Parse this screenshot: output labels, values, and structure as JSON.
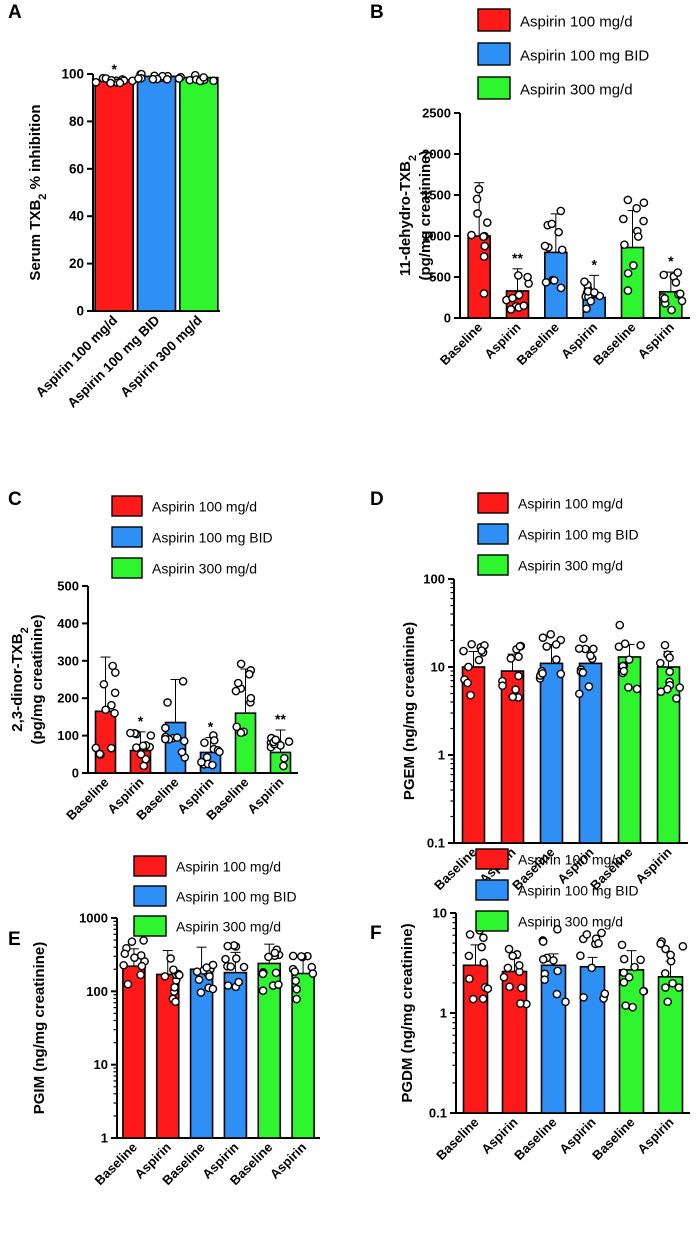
{
  "figure": {
    "colors": {
      "red": "#ff1a1a",
      "blue": "#2e8ff5",
      "green": "#2ef52e"
    },
    "legend_labels": [
      "Aspirin 100 mg/d",
      "Aspirin 100 mg BID",
      "Aspirin 300 mg/d"
    ]
  },
  "chart_data": [
    {
      "panel": "A",
      "type": "bar",
      "ylabel_main": "Serum TXB",
      "ylabel_sub": "2",
      "ylabel_tail": " % inhibition",
      "ylim": [
        0,
        100
      ],
      "yticks": [
        "0",
        "20",
        "40",
        "60",
        "80",
        "100"
      ],
      "categories": [
        "Aspirin 100 mg/d",
        "Aspirin 100 mg BID",
        "Aspirin 300 mg/d"
      ],
      "values": [
        97.5,
        99,
        98.5
      ],
      "annotations": [
        "*",
        "",
        ""
      ]
    },
    {
      "panel": "B",
      "type": "bar",
      "ylabel_main": "11-dehydro-TXB",
      "ylabel_sub": "2",
      "ylabel_line2": "(pg/mg creatinine)",
      "ylim": [
        0,
        2500
      ],
      "yticks": [
        "0",
        "500",
        "1000",
        "1500",
        "2000",
        "2500"
      ],
      "categories": [
        "Baseline",
        "Aspirin",
        "Baseline",
        "Aspirin",
        "Baseline",
        "Aspirin"
      ],
      "values": [
        1000,
        330,
        800,
        250,
        860,
        320
      ],
      "sd_upper": [
        1650,
        600,
        1270,
        520,
        1310,
        560
      ],
      "annotations": [
        "",
        "**",
        "",
        "*",
        "",
        "*"
      ],
      "legend": [
        "Aspirin 100 mg/d",
        "Aspirin 100 mg BID",
        "Aspirin 300 mg/d"
      ]
    },
    {
      "panel": "C",
      "type": "bar",
      "ylabel_main": "2,3-dinor-TXB",
      "ylabel_sub": "2",
      "ylabel_line2": "(pg/mg creatinine)",
      "ylim": [
        0,
        500
      ],
      "yticks": [
        "0",
        "100",
        "200",
        "300",
        "400",
        "500"
      ],
      "categories": [
        "Baseline",
        "Aspirin",
        "Baseline",
        "Aspirin",
        "Baseline",
        "Aspirin"
      ],
      "values": [
        165,
        60,
        135,
        55,
        160,
        55
      ],
      "sd_upper": [
        310,
        110,
        250,
        95,
        278,
        115
      ],
      "annotations": [
        "",
        "*",
        "",
        "*",
        "",
        "**"
      ],
      "legend": [
        "Aspirin 100 mg/d",
        "Aspirin 100 mg BID",
        "Aspirin 300 mg/d"
      ]
    },
    {
      "panel": "D",
      "type": "bar",
      "scale": "log",
      "ylabel_main": "PGEM (ng/mg creatinine)",
      "ylim": [
        0.1,
        100
      ],
      "yticks": [
        "0.1",
        "1",
        "10",
        "100"
      ],
      "categories": [
        "Baseline",
        "Aspirin",
        "Baseline",
        "Aspirin",
        "Baseline",
        "Aspirin"
      ],
      "values": [
        10,
        9,
        11,
        11,
        13,
        10
      ],
      "sd_upper": [
        15,
        14,
        18,
        16,
        18,
        15
      ],
      "legend": [
        "Aspirin 100 mg/d",
        "Aspirin 100 mg BID",
        "Aspirin 300 mg/d"
      ]
    },
    {
      "panel": "E",
      "type": "bar",
      "scale": "log",
      "ylabel_main": "PGIM (ng/mg creatinine)",
      "ylim": [
        1,
        1000
      ],
      "yticks": [
        "1",
        "10",
        "100",
        "1000"
      ],
      "categories": [
        "Baseline",
        "Aspirin",
        "Baseline",
        "Aspirin",
        "Baseline",
        "Aspirin"
      ],
      "values": [
        220,
        170,
        200,
        180,
        240,
        175
      ],
      "sd_upper": [
        380,
        360,
        400,
        340,
        440,
        320
      ],
      "legend": [
        "Aspirin 100 mg/d",
        "Aspirin 100 mg BID",
        "Aspirin 300 mg/d"
      ]
    },
    {
      "panel": "F",
      "type": "bar",
      "scale": "log",
      "ylabel_main": "PGDM (ng/mg creatinine)",
      "ylim": [
        0.1,
        10
      ],
      "yticks": [
        "0.1",
        "1",
        "10"
      ],
      "categories": [
        "Baseline",
        "Aspirin",
        "Baseline",
        "Aspirin",
        "Baseline",
        "Aspirin"
      ],
      "values": [
        3.0,
        2.6,
        3.0,
        2.9,
        2.7,
        2.3
      ],
      "sd_upper": [
        4.8,
        3.5,
        3.9,
        3.6,
        4.2,
        3.3
      ],
      "legend": [
        "Aspirin 100 mg/d",
        "Aspirin 100 mg BID",
        "Aspirin 300 mg/d"
      ]
    }
  ]
}
